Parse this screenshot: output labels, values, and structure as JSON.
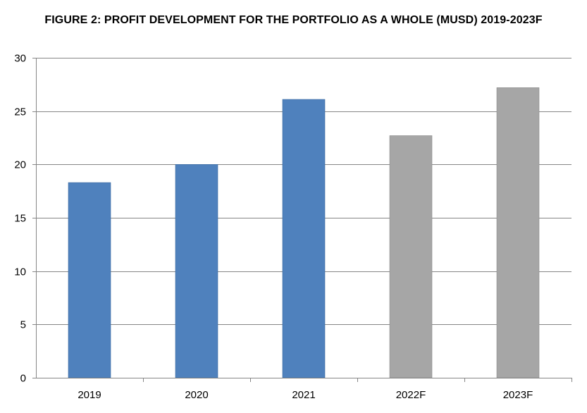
{
  "chart_data": {
    "type": "bar",
    "title": "FIGURE 2: PROFIT DEVELOPMENT FOR THE PORTFOLIO AS A WHOLE (MUSD) 2019-2023F",
    "categories": [
      "2019",
      "2020",
      "2021",
      "2022F",
      "2023F"
    ],
    "values": [
      18.3,
      20.0,
      26.1,
      22.7,
      27.2
    ],
    "ylim": [
      0,
      30
    ],
    "yticks": [
      0,
      5,
      10,
      15,
      20,
      25,
      30
    ],
    "xlabel": "",
    "ylabel": "",
    "grid": true,
    "legend": "none",
    "colors": {
      "actual": "#4f81bd",
      "forecast": "#a6a6a6",
      "gridline": "#868686",
      "axis": "#868686"
    },
    "bar_kind": [
      "actual",
      "actual",
      "actual",
      "forecast",
      "forecast"
    ]
  }
}
